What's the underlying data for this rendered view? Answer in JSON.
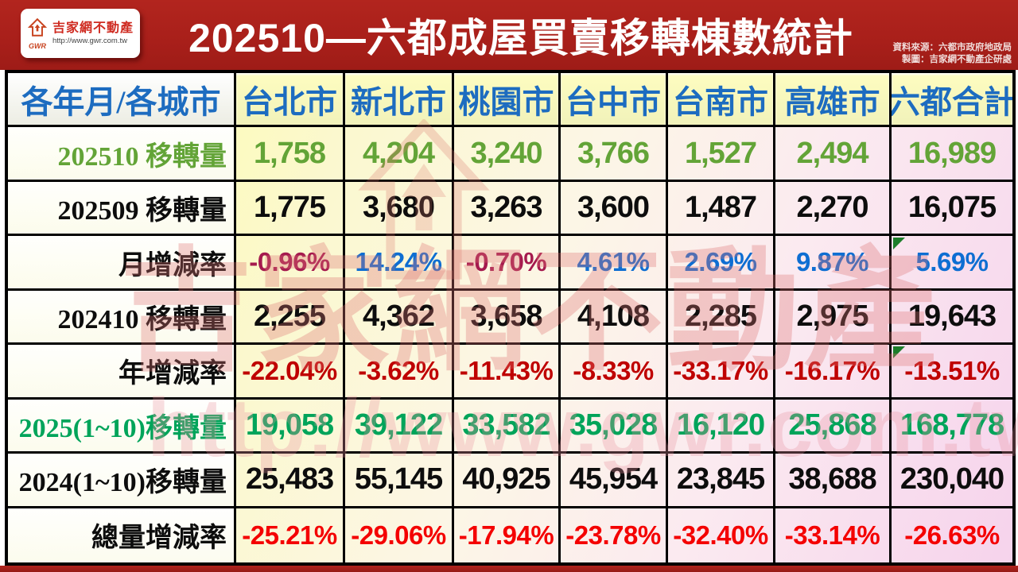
{
  "header": {
    "logo": {
      "brand": "吉家網不動產",
      "gwr": "GWR",
      "url": "http://www.gwr.com.tw"
    },
    "title": "202510—六都成屋買賣移轉棟數統計",
    "source_line1": "資料來源：六都市政府地政局",
    "source_line2": "製圖：吉家網不動產企研處"
  },
  "watermark": {
    "brand": "吉家網不動產",
    "url": "http://www.gwr.com.tw"
  },
  "colors": {
    "header_blue": "#1d6cc0",
    "green1": "#63a437",
    "green2": "#00a45a",
    "black": "#0d0d0d",
    "month_neg": "#a51a4e",
    "month_pos": "#0e6ed2",
    "year_red": "#bf0000",
    "total_red": "#f40000",
    "marker_green": "#1c7d2a"
  },
  "chart_data": {
    "type": "table",
    "title": "202510—六都成屋買賣移轉棟數統計",
    "columns": [
      "各年月/各城市",
      "台北市",
      "新北市",
      "桃園市",
      "台中市",
      "台南市",
      "高雄市",
      "六都合計"
    ],
    "rows": [
      {
        "label": "202510 移轉量",
        "style": "green",
        "corner_marker": false,
        "values": [
          "1,758",
          "4,204",
          "3,240",
          "3,766",
          "1,527",
          "2,494",
          "16,989"
        ]
      },
      {
        "label": "202509 移轉量",
        "style": "black",
        "corner_marker": false,
        "values": [
          "1,775",
          "3,680",
          "3,263",
          "3,600",
          "1,487",
          "2,270",
          "16,075"
        ]
      },
      {
        "label": "月增減率",
        "style": "pct-month",
        "corner_marker": true,
        "values": [
          "-0.96%",
          "14.24%",
          "-0.70%",
          "4.61%",
          "2.69%",
          "9.87%",
          "5.69%"
        ]
      },
      {
        "label": "202410 移轉量",
        "style": "black",
        "corner_marker": false,
        "values": [
          "2,255",
          "4,362",
          "3,658",
          "4,108",
          "2,285",
          "2,975",
          "19,643"
        ]
      },
      {
        "label": "年增減率",
        "style": "pct-year",
        "corner_marker": true,
        "values": [
          "-22.04%",
          "-3.62%",
          "-11.43%",
          "-8.33%",
          "-33.17%",
          "-16.17%",
          "-13.51%"
        ]
      },
      {
        "label": "2025(1~10)移轉量",
        "style": "green2",
        "corner_marker": false,
        "values": [
          "19,058",
          "39,122",
          "33,582",
          "35,028",
          "16,120",
          "25,868",
          "168,778"
        ]
      },
      {
        "label": "2024(1~10)移轉量",
        "style": "black",
        "corner_marker": false,
        "values": [
          "25,483",
          "55,145",
          "40,925",
          "45,954",
          "23,845",
          "38,688",
          "230,040"
        ]
      },
      {
        "label": "總量增減率",
        "style": "pct-total",
        "corner_marker": false,
        "values": [
          "-25.21%",
          "-29.06%",
          "-17.94%",
          "-23.78%",
          "-32.40%",
          "-33.14%",
          "-26.63%"
        ]
      }
    ]
  }
}
